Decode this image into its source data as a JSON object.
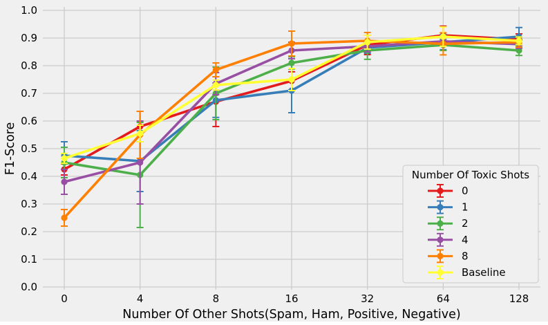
{
  "figure": {
    "background": "#f0f0f0",
    "plot_background": "#f0f0f0",
    "grid_color": "#cbcbcb",
    "text_color": "#000000",
    "legend_border_color": "#cfcfcf"
  },
  "chart_data": {
    "type": "line",
    "title": "",
    "xlabel": "Number Of Other Shots(Spam, Ham, Positive, Negative)",
    "ylabel": "F1-Score",
    "x_tick_labels": [
      "0",
      "4",
      "8",
      "16",
      "32",
      "64",
      "128"
    ],
    "y_tick_labels": [
      "0.0",
      "0.1",
      "0.2",
      "0.3",
      "0.4",
      "0.5",
      "0.6",
      "0.7",
      "0.8",
      "0.9",
      "1.0"
    ],
    "ylim": [
      0.0,
      1.0
    ],
    "grid": true,
    "legend": {
      "title": "Number Of Toxic Shots",
      "position": "lower right"
    },
    "series": [
      {
        "name": "0",
        "color": "#e41a1c",
        "values": [
          0.425,
          0.58,
          0.67,
          0.745,
          0.875,
          0.91,
          0.895
        ],
        "errors": [
          0.02,
          0.055,
          0.09,
          0.033,
          0.035,
          0.033,
          0.02
        ]
      },
      {
        "name": "1",
        "color": "#377eb8",
        "values": [
          0.475,
          0.455,
          0.675,
          0.71,
          0.865,
          0.885,
          0.905
        ],
        "errors": [
          0.05,
          0.11,
          0.062,
          0.08,
          0.02,
          0.027,
          0.033
        ]
      },
      {
        "name": "2",
        "color": "#4daf4a",
        "values": [
          0.45,
          0.405,
          0.7,
          0.81,
          0.855,
          0.875,
          0.855
        ],
        "errors": [
          0.055,
          0.19,
          0.095,
          0.022,
          0.032,
          0.02,
          0.018
        ]
      },
      {
        "name": "4",
        "color": "#984ea3",
        "values": [
          0.38,
          0.45,
          0.735,
          0.855,
          0.87,
          0.888,
          0.878
        ],
        "errors": [
          0.045,
          0.15,
          0.04,
          0.03,
          0.02,
          0.018,
          0.015
        ]
      },
      {
        "name": "8",
        "color": "#ff7f00",
        "values": [
          0.25,
          0.55,
          0.785,
          0.88,
          0.89,
          0.879,
          0.885
        ],
        "errors": [
          0.03,
          0.085,
          0.025,
          0.045,
          0.03,
          0.04,
          0.018
        ]
      },
      {
        "name": "Baseline",
        "color": "#ffff33",
        "values": [
          0.465,
          0.555,
          0.73,
          0.75,
          0.885,
          0.905,
          0.89
        ],
        "errors": [
          0.018,
          0.03,
          0.018,
          0.04,
          0.025,
          0.035,
          0.014
        ]
      }
    ]
  }
}
